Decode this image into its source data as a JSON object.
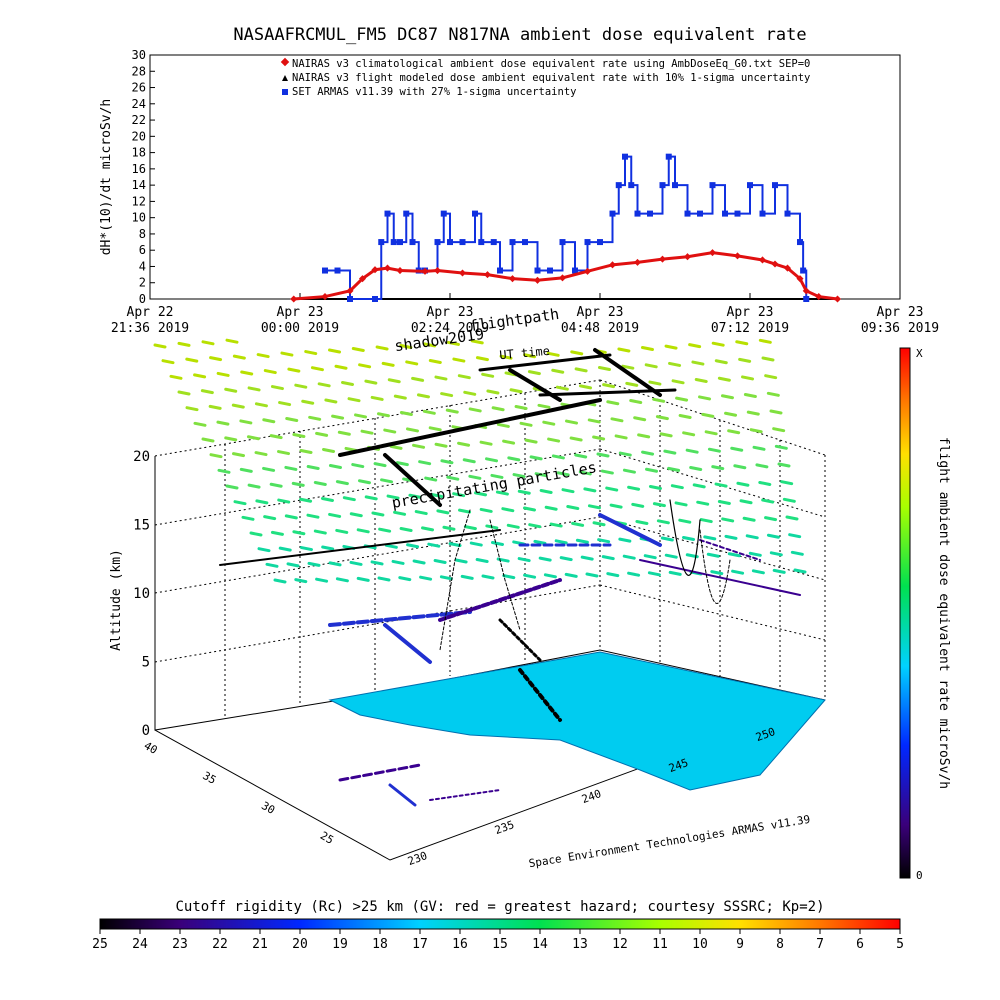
{
  "chart_data": [
    {
      "type": "line",
      "title": "NASAAFRCMUL_FM5 DC87 N817NA ambient dose equivalent rate",
      "ylabel": "dH*(10)/dt microSv/h",
      "ylim": [
        0,
        30
      ],
      "y_ticks": [
        "0",
        "2",
        "4",
        "6",
        "8",
        "10",
        "12",
        "14",
        "16",
        "18",
        "20",
        "22",
        "24",
        "26",
        "28",
        "30"
      ],
      "x_ticks": [
        {
          "date": "Apr 22",
          "time": "21:36 2019"
        },
        {
          "date": "Apr 23",
          "time": "00:00 2019"
        },
        {
          "date": "Apr 23",
          "time": "02:24 2019"
        },
        {
          "date": "Apr 23",
          "time": "04:48 2019"
        },
        {
          "date": "Apr 23",
          "time": "07:12 2019"
        },
        {
          "date": "Apr 23",
          "time": "09:36 2019"
        }
      ],
      "legend_placement": "top-right",
      "series": [
        {
          "name": "NAIRAS v3 climatological ambient dose equivalent rate using AmbDoseEq_G0.txt SEP=0",
          "color": "#e01010",
          "marker": "diamond",
          "points": [
            [
              -0.1,
              0
            ],
            [
              0.4,
              0.3
            ],
            [
              0.8,
              1
            ],
            [
              1,
              2.5
            ],
            [
              1.2,
              3.6
            ],
            [
              1.4,
              3.8
            ],
            [
              1.6,
              3.5
            ],
            [
              2,
              3.4
            ],
            [
              2.2,
              3.5
            ],
            [
              2.6,
              3.2
            ],
            [
              3,
              3
            ],
            [
              3.4,
              2.5
            ],
            [
              3.8,
              2.3
            ],
            [
              4.2,
              2.6
            ],
            [
              4.6,
              3.4
            ],
            [
              5,
              4.2
            ],
            [
              5.4,
              4.5
            ],
            [
              5.8,
              4.9
            ],
            [
              6.2,
              5.2
            ],
            [
              6.6,
              5.7
            ],
            [
              7,
              5.3
            ],
            [
              7.4,
              4.8
            ],
            [
              7.6,
              4.3
            ],
            [
              7.8,
              3.8
            ],
            [
              8,
              2.5
            ],
            [
              8.1,
              1
            ],
            [
              8.3,
              0.3
            ],
            [
              8.6,
              0
            ]
          ]
        },
        {
          "name": "NAIRAS v3 flight modeled dose ambient equivalent rate with 10% 1-sigma uncertainty",
          "color": "#000000",
          "marker": "triangle",
          "points": [
            [
              -0.1,
              0
            ],
            [
              8.6,
              0
            ]
          ]
        },
        {
          "name": "SET ARMAS v11.39 with 27% 1-sigma uncertainty",
          "color": "#1030e0",
          "marker": "square",
          "points": [
            [
              0.4,
              3.5
            ],
            [
              0.6,
              3.5
            ],
            [
              0.8,
              0
            ],
            [
              1.2,
              0
            ],
            [
              1.3,
              7
            ],
            [
              1.4,
              10.5
            ],
            [
              1.5,
              7
            ],
            [
              1.6,
              7
            ],
            [
              1.7,
              10.5
            ],
            [
              1.8,
              7
            ],
            [
              1.9,
              3.5
            ],
            [
              2,
              3.5
            ],
            [
              2.2,
              7
            ],
            [
              2.3,
              10.5
            ],
            [
              2.4,
              7
            ],
            [
              2.6,
              7
            ],
            [
              2.8,
              10.5
            ],
            [
              2.9,
              7
            ],
            [
              3.1,
              7
            ],
            [
              3.2,
              3.5
            ],
            [
              3.4,
              7
            ],
            [
              3.6,
              7
            ],
            [
              3.8,
              3.5
            ],
            [
              4,
              3.5
            ],
            [
              4.2,
              7
            ],
            [
              4.4,
              3.5
            ],
            [
              4.6,
              7
            ],
            [
              4.8,
              7
            ],
            [
              5,
              10.5
            ],
            [
              5.1,
              14
            ],
            [
              5.2,
              17.5
            ],
            [
              5.3,
              14
            ],
            [
              5.4,
              10.5
            ],
            [
              5.6,
              10.5
            ],
            [
              5.8,
              14
            ],
            [
              5.9,
              17.5
            ],
            [
              6,
              14
            ],
            [
              6.2,
              10.5
            ],
            [
              6.4,
              10.5
            ],
            [
              6.6,
              14
            ],
            [
              6.8,
              10.5
            ],
            [
              7,
              10.5
            ],
            [
              7.2,
              14
            ],
            [
              7.4,
              10.5
            ],
            [
              7.6,
              14
            ],
            [
              7.8,
              10.5
            ],
            [
              8,
              7
            ],
            [
              8.05,
              3.5
            ],
            [
              8.1,
              0
            ]
          ]
        }
      ]
    },
    {
      "type": "scatter",
      "ylabel": "Altitude (km)",
      "z_ticks": [
        "0",
        "5",
        "10",
        "15",
        "20"
      ],
      "lat_ticks": [
        "25",
        "30",
        "35",
        "40"
      ],
      "lon_ticks": [
        "230",
        "235",
        "240",
        "245",
        "250"
      ],
      "annotations": [
        "shadow2019",
        "flightpath",
        "UT time",
        "precipitating particles"
      ],
      "credit": "Space Environment Technologies ARMAS v11.39",
      "colorbar_right": {
        "label": "flight ambient dose equivalent rate microSv/h",
        "top": "X",
        "bottom": "0"
      },
      "colorbar_bottom": {
        "label": "Cutoff rigidity (Rc) >25 km (GV: red = greatest hazard; courtesy SSSRC; Kp=2)",
        "ticks": [
          "25",
          "24",
          "23",
          "22",
          "21",
          "20",
          "19",
          "18",
          "17",
          "16",
          "15",
          "14",
          "13",
          "12",
          "11",
          "10",
          "9",
          "8",
          "7",
          "6",
          "5"
        ]
      }
    }
  ]
}
